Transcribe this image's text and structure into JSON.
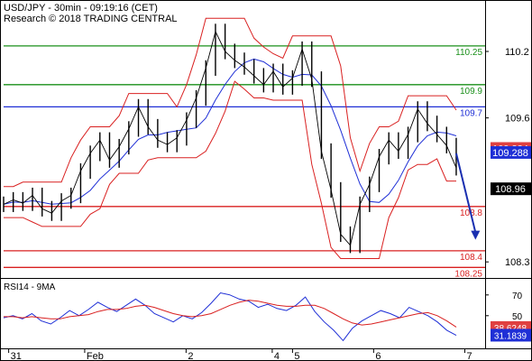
{
  "header": {
    "line1": "USD/JPY - 30min - 09:19:16 (CET)",
    "line2": "Research © 2018 TRADING CENTRAL"
  },
  "chart_data": [
    {
      "type": "line",
      "title": "USD/JPY - 30min - 09:19:16 (CET)",
      "subtitle": "Research © 2018 TRADING CENTRAL",
      "ylim": [
        108.22,
        110.42
      ],
      "y_ticks": [
        110.2,
        109.6,
        108.3
      ],
      "x_ticks": [
        "31",
        "Feb",
        "2",
        "4",
        "5",
        "6",
        "7"
      ],
      "levels": [
        {
          "label": "110.25",
          "value": 110.25,
          "color": "#1a8f1a"
        },
        {
          "label": "109.9",
          "value": 109.9,
          "color": "#1a8f1a"
        },
        {
          "label": "109.7",
          "value": 109.7,
          "color": "#1f2fd6"
        },
        {
          "label": "108.8",
          "value": 108.8,
          "color": "#d92020"
        },
        {
          "label": "108.4",
          "value": 108.4,
          "color": "#d92020"
        },
        {
          "label": "108.25",
          "value": 108.25,
          "color": "#d92020"
        }
      ],
      "price_tags": [
        {
          "label": "109.324",
          "value": 109.324,
          "bg": "#e04040",
          "fg": "#ffffff"
        },
        {
          "label": "109.288",
          "value": 109.288,
          "bg": "#1f2fd6",
          "fg": "#ffffff"
        },
        {
          "label": "108.96",
          "value": 108.96,
          "bg": "#000000",
          "fg": "#ffffff"
        }
      ],
      "price_series": [
        {
          "t": 0,
          "v": 108.82
        },
        {
          "t": 3,
          "v": 108.86
        },
        {
          "t": 6,
          "v": 108.83
        },
        {
          "t": 9,
          "v": 108.9
        },
        {
          "t": 12,
          "v": 108.78
        },
        {
          "t": 15,
          "v": 108.74
        },
        {
          "t": 18,
          "v": 108.85
        },
        {
          "t": 21,
          "v": 108.9
        },
        {
          "t": 24,
          "v": 109.12
        },
        {
          "t": 27,
          "v": 109.28
        },
        {
          "t": 30,
          "v": 109.4
        },
        {
          "t": 33,
          "v": 109.22
        },
        {
          "t": 36,
          "v": 109.34
        },
        {
          "t": 39,
          "v": 109.5
        },
        {
          "t": 42,
          "v": 109.7
        },
        {
          "t": 45,
          "v": 109.52
        },
        {
          "t": 48,
          "v": 109.4
        },
        {
          "t": 51,
          "v": 109.36
        },
        {
          "t": 54,
          "v": 109.42
        },
        {
          "t": 57,
          "v": 109.58
        },
        {
          "t": 60,
          "v": 109.78
        },
        {
          "t": 63,
          "v": 110.05
        },
        {
          "t": 66,
          "v": 110.38
        },
        {
          "t": 69,
          "v": 110.2
        },
        {
          "t": 72,
          "v": 110.12
        },
        {
          "t": 75,
          "v": 110.06
        },
        {
          "t": 78,
          "v": 109.98
        },
        {
          "t": 81,
          "v": 109.9
        },
        {
          "t": 84,
          "v": 110.02
        },
        {
          "t": 87,
          "v": 109.88
        },
        {
          "t": 90,
          "v": 109.96
        },
        {
          "t": 93,
          "v": 110.22
        },
        {
          "t": 96,
          "v": 109.95
        },
        {
          "t": 99,
          "v": 109.3
        },
        {
          "t": 102,
          "v": 108.95
        },
        {
          "t": 105,
          "v": 108.55
        },
        {
          "t": 108,
          "v": 108.45
        },
        {
          "t": 111,
          "v": 108.82
        },
        {
          "t": 114,
          "v": 109.0
        },
        {
          "t": 117,
          "v": 109.25
        },
        {
          "t": 120,
          "v": 109.4
        },
        {
          "t": 123,
          "v": 109.3
        },
        {
          "t": 126,
          "v": 109.45
        },
        {
          "t": 129,
          "v": 109.68
        },
        {
          "t": 132,
          "v": 109.55
        },
        {
          "t": 135,
          "v": 109.45
        },
        {
          "t": 138,
          "v": 109.35
        },
        {
          "t": 141,
          "v": 109.15
        }
      ],
      "forecast_arrow": {
        "from": {
          "t": 141,
          "v": 109.28
        },
        "to": {
          "t": 147,
          "v": 108.5
        }
      }
    },
    {
      "type": "line",
      "title": "RSI14 - 9MA",
      "ylim": [
        22,
        82
      ],
      "y_ticks": [
        70,
        50
      ],
      "tags": [
        {
          "label": "38.6248",
          "value": 38.6248,
          "bg": "#e04040",
          "fg": "#ffffff"
        },
        {
          "label": "31.1839",
          "value": 31.1839,
          "bg": "#1f2fd6",
          "fg": "#ffffff"
        }
      ],
      "series": [
        {
          "color": "#1f2fd6",
          "values": [
            48,
            50,
            47,
            52,
            45,
            42,
            48,
            55,
            50,
            56,
            63,
            58,
            54,
            60,
            66,
            60,
            52,
            48,
            44,
            50,
            47,
            53,
            62,
            72,
            70,
            66,
            64,
            58,
            61,
            57,
            55,
            60,
            68,
            54,
            44,
            36,
            26,
            38,
            45,
            50,
            55,
            52,
            48,
            58,
            54,
            50,
            44,
            36,
            31
          ]
        },
        {
          "color": "#d92020",
          "values": [
            49,
            49,
            48,
            49,
            48,
            47,
            47,
            49,
            50,
            51,
            54,
            56,
            56,
            57,
            59,
            60,
            58,
            55,
            52,
            50,
            49,
            50,
            52,
            56,
            60,
            63,
            65,
            64,
            62,
            60,
            59,
            59,
            60,
            60,
            57,
            52,
            47,
            43,
            41,
            42,
            44,
            46,
            48,
            50,
            52,
            53,
            50,
            45,
            39
          ]
        }
      ]
    }
  ]
}
